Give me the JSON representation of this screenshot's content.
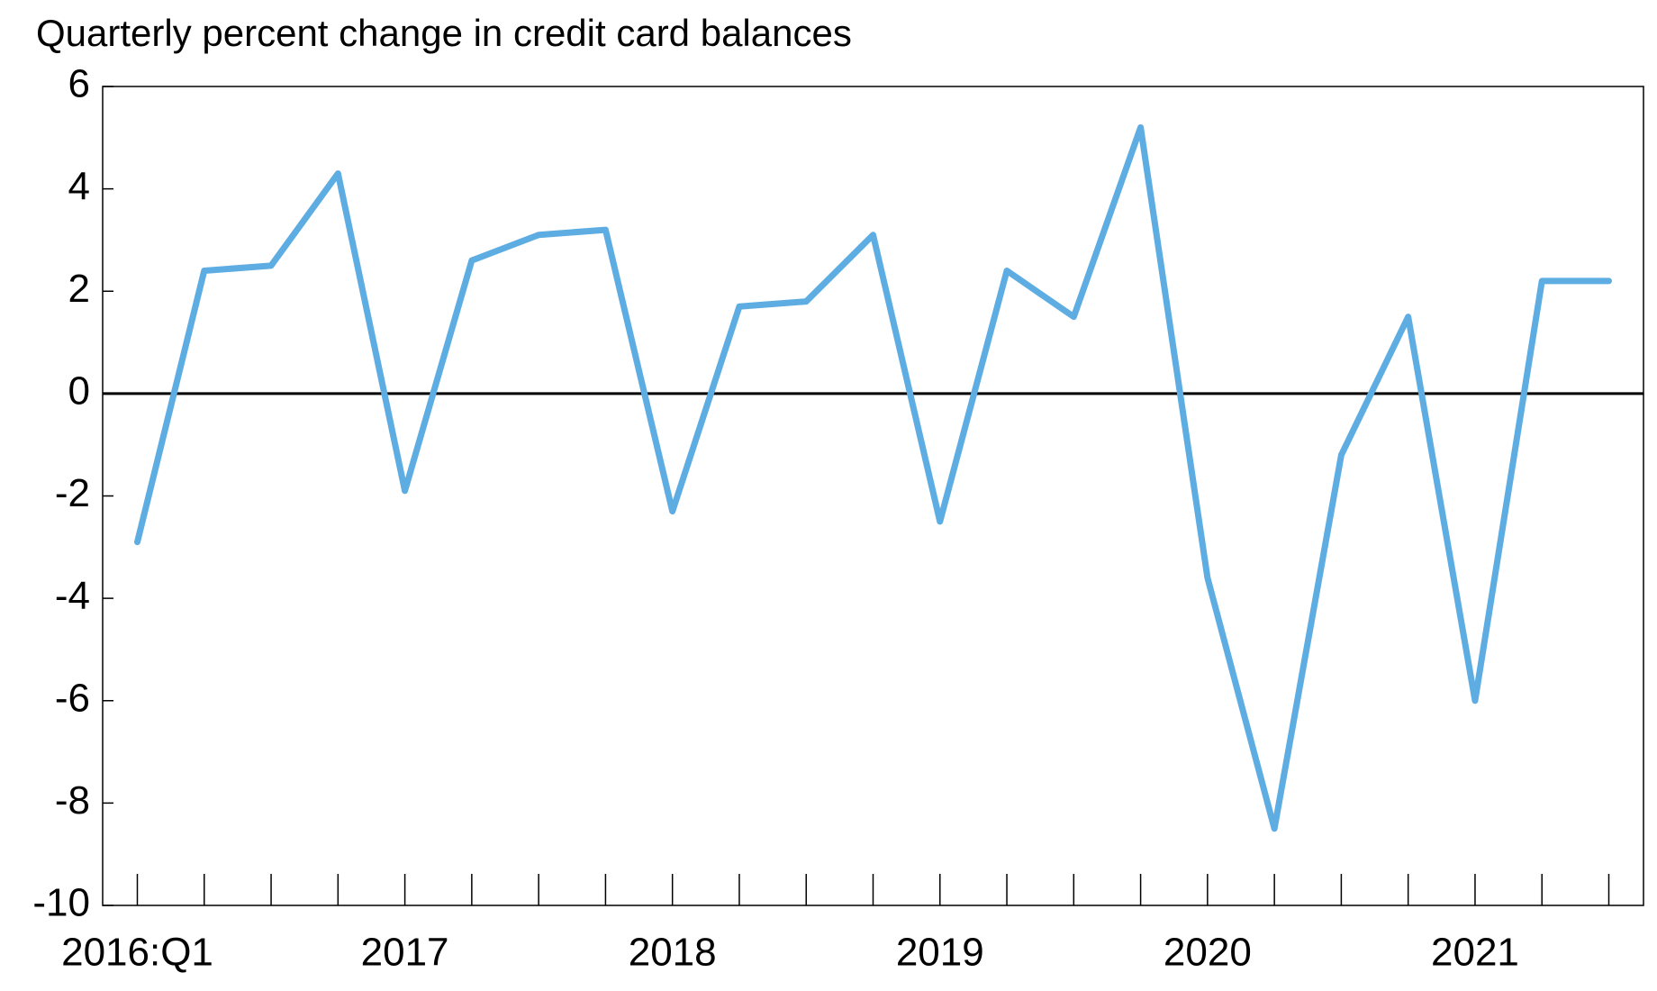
{
  "chart_data": {
    "type": "line",
    "title": "Quarterly percent change in credit card balances",
    "categories": [
      "2016:Q1",
      null,
      null,
      null,
      "2017",
      null,
      null,
      null,
      "2018",
      null,
      null,
      null,
      "2019",
      null,
      null,
      null,
      "2020",
      null,
      null,
      null,
      "2021",
      null,
      null
    ],
    "series": [
      {
        "name": "Quarterly percent change",
        "color": "#5dade2",
        "values": [
          -2.9,
          2.4,
          2.5,
          4.3,
          -1.9,
          2.6,
          3.1,
          3.2,
          -2.3,
          1.7,
          1.8,
          3.1,
          -2.5,
          2.4,
          1.5,
          5.2,
          -3.6,
          -8.5,
          -1.2,
          1.5,
          -6.0,
          2.2,
          2.2
        ]
      }
    ],
    "ylim": [
      -10,
      6
    ],
    "yticks": [
      -10,
      -8,
      -6,
      -4,
      -2,
      0,
      2,
      4,
      6
    ],
    "grid": false
  }
}
